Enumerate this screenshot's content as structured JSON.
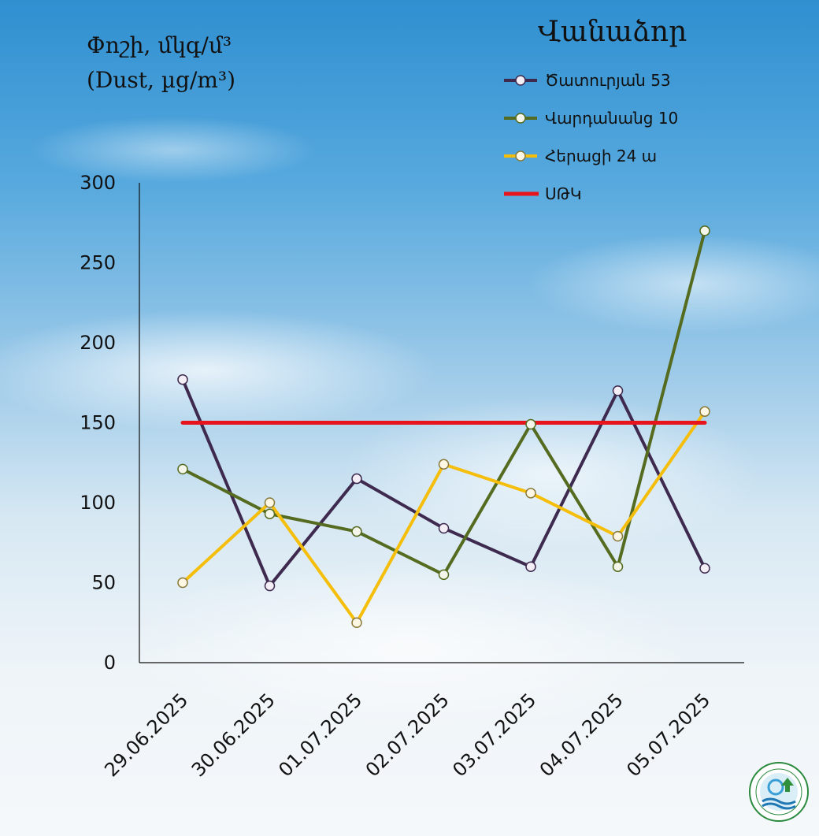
{
  "chart_data": {
    "type": "line",
    "title": "",
    "ylabel_line1": "Փոշի, մկգ/մ³",
    "ylabel_line2": "(Dust, µg/m³)",
    "legend_title": "Վանաձոր",
    "legend_position": "top-right",
    "grid": false,
    "ylim": [
      0,
      300
    ],
    "yticks": [
      0,
      50,
      100,
      150,
      200,
      250,
      300
    ],
    "categories": [
      "29.06.2025",
      "30.06.2025",
      "01.07.2025",
      "02.07.2025",
      "03.07.2025",
      "04.07.2025",
      "05.07.2025"
    ],
    "series": [
      {
        "name": "Ծատուրյան 53",
        "color": "#3e2a4f",
        "marker": "circle",
        "values": [
          177,
          48,
          115,
          84,
          60,
          170,
          59
        ]
      },
      {
        "name": "Վարդանանց 10",
        "color": "#556b1f",
        "marker": "circle",
        "values": [
          121,
          93,
          82,
          55,
          149,
          60,
          270
        ]
      },
      {
        "name": "Հերացի 24 ա",
        "color": "#f5be0b",
        "marker": "circle",
        "values": [
          50,
          100,
          25,
          124,
          106,
          79,
          157
        ]
      },
      {
        "name": "ՍԹԿ",
        "color": "#e8141b",
        "marker": "none",
        "values": [
          150,
          150,
          150,
          150,
          150,
          150,
          150
        ]
      }
    ]
  }
}
